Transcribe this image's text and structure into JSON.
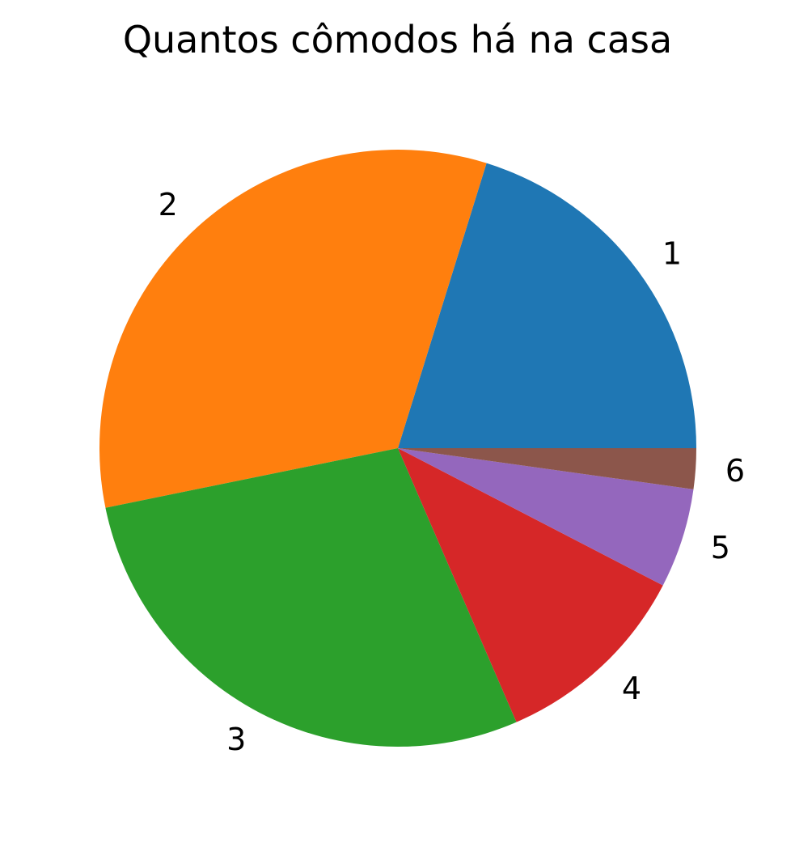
{
  "chart_data": {
    "type": "pie",
    "title": "Quantos cômodos há na casa",
    "categories": [
      "1",
      "2",
      "3",
      "4",
      "5",
      "6"
    ],
    "values": [
      20.2,
      33.0,
      28.3,
      10.9,
      5.4,
      2.2
    ],
    "colors": [
      "#1f77b4",
      "#ff7f0e",
      "#2ca02c",
      "#d62728",
      "#9467bd",
      "#8c564b"
    ],
    "start_angle_deg": 0,
    "direction": "counterclockwise"
  }
}
